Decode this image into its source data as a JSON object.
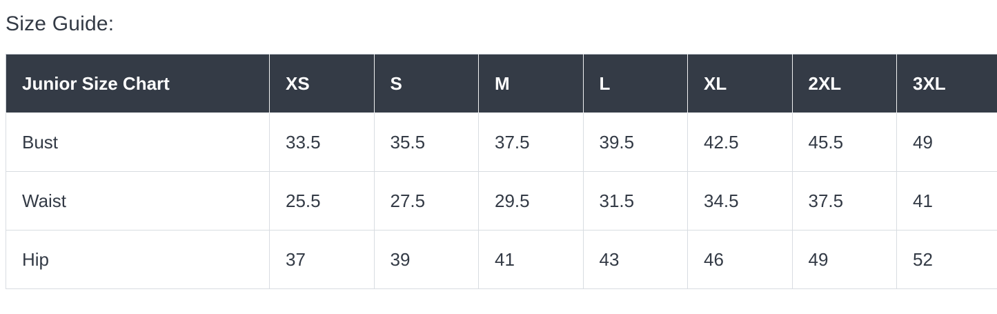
{
  "title": "Size Guide:",
  "size_chart": {
    "name_header": "Junior Size Chart",
    "size_headers": [
      "XS",
      "S",
      "M",
      "L",
      "XL",
      "2XL",
      "3XL"
    ],
    "rows": [
      {
        "label": "Bust",
        "values": [
          "33.5",
          "35.5",
          "37.5",
          "39.5",
          "42.5",
          "45.5",
          "49"
        ]
      },
      {
        "label": "Waist",
        "values": [
          "25.5",
          "27.5",
          "29.5",
          "31.5",
          "34.5",
          "37.5",
          "41"
        ]
      },
      {
        "label": "Hip",
        "values": [
          "37",
          "39",
          "41",
          "43",
          "46",
          "49",
          "52"
        ]
      }
    ]
  },
  "colors": {
    "header_bg": "#343b46",
    "header_text": "#ffffff",
    "body_text": "#333a45",
    "border": "#d8dce1"
  }
}
